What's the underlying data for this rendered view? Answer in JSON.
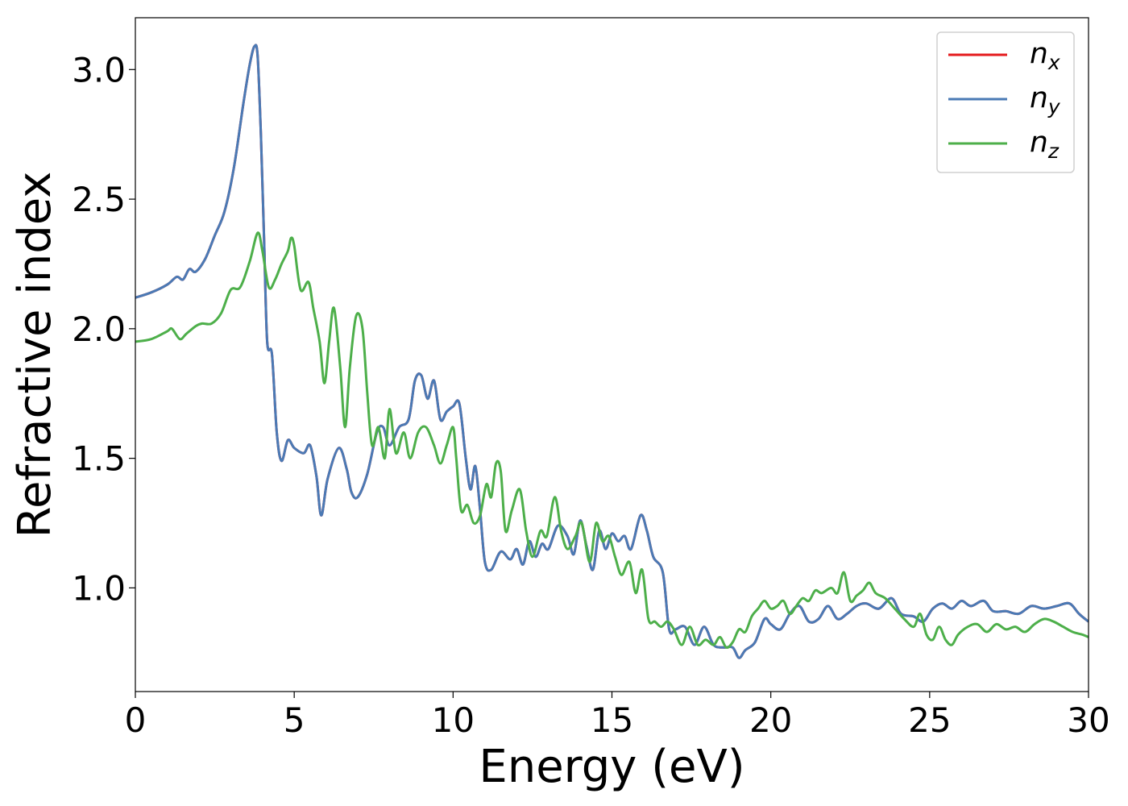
{
  "chart_data": {
    "type": "line",
    "title": "",
    "xlabel": "Energy (eV)",
    "ylabel": "Refractive index",
    "xlim": [
      0,
      30
    ],
    "ylim": [
      0.6,
      3.2
    ],
    "xticks": [
      0,
      5,
      10,
      15,
      20,
      25,
      30
    ],
    "xtick_labels": [
      "0",
      "5",
      "10",
      "15",
      "20",
      "25",
      "30"
    ],
    "yticks": [
      1.0,
      1.5,
      2.0,
      2.5,
      3.0
    ],
    "ytick_labels": [
      "1.0",
      "1.5",
      "2.0",
      "2.5",
      "3.0"
    ],
    "grid": false,
    "legend_position": "top-right",
    "series": [
      {
        "name": "n_x",
        "label_main": "n",
        "label_sub": "x",
        "color": "#e41a1c",
        "x": [
          0,
          0.5,
          1,
          1.3,
          1.5,
          1.7,
          1.9,
          2.2,
          2.5,
          2.8,
          3.1,
          3.4,
          3.6,
          3.75,
          3.85,
          3.95,
          4.05,
          4.15,
          4.3,
          4.45,
          4.6,
          4.8,
          5.0,
          5.3,
          5.5,
          5.7,
          5.85,
          6.05,
          6.4,
          6.65,
          6.8,
          7.0,
          7.3,
          7.6,
          7.8,
          8.0,
          8.3,
          8.6,
          8.8,
          9.0,
          9.2,
          9.4,
          9.6,
          9.8,
          10.0,
          10.2,
          10.4,
          10.55,
          10.7,
          10.85,
          11.0,
          11.2,
          11.5,
          11.8,
          12.0,
          12.2,
          12.4,
          12.6,
          12.8,
          13.0,
          13.3,
          13.6,
          13.8,
          14.0,
          14.2,
          14.4,
          14.6,
          14.8,
          15.0,
          15.2,
          15.4,
          15.6,
          15.9,
          16.1,
          16.3,
          16.6,
          16.8,
          17.0,
          17.3,
          17.6,
          17.9,
          18.2,
          18.5,
          18.8,
          19.0,
          19.2,
          19.5,
          19.8,
          20.0,
          20.3,
          20.6,
          20.9,
          21.2,
          21.5,
          21.8,
          22.1,
          22.4,
          22.7,
          23.0,
          23.4,
          23.8,
          24.1,
          24.5,
          24.8,
          25.1,
          25.4,
          25.7,
          26.0,
          26.3,
          26.7,
          27.0,
          27.4,
          27.8,
          28.2,
          28.6,
          29.0,
          29.4,
          29.7,
          30.0
        ],
        "y": [
          2.12,
          2.14,
          2.17,
          2.2,
          2.19,
          2.23,
          2.22,
          2.27,
          2.36,
          2.45,
          2.62,
          2.87,
          3.02,
          3.09,
          3.05,
          2.75,
          2.35,
          1.95,
          1.9,
          1.6,
          1.49,
          1.57,
          1.54,
          1.52,
          1.55,
          1.43,
          1.28,
          1.42,
          1.54,
          1.46,
          1.37,
          1.35,
          1.44,
          1.6,
          1.62,
          1.55,
          1.62,
          1.65,
          1.8,
          1.82,
          1.73,
          1.8,
          1.65,
          1.68,
          1.7,
          1.71,
          1.5,
          1.38,
          1.47,
          1.3,
          1.1,
          1.07,
          1.14,
          1.11,
          1.15,
          1.09,
          1.18,
          1.12,
          1.17,
          1.15,
          1.24,
          1.2,
          1.13,
          1.26,
          1.16,
          1.07,
          1.22,
          1.15,
          1.21,
          1.18,
          1.2,
          1.15,
          1.28,
          1.22,
          1.12,
          1.06,
          0.84,
          0.84,
          0.85,
          0.78,
          0.85,
          0.78,
          0.77,
          0.77,
          0.73,
          0.76,
          0.79,
          0.88,
          0.86,
          0.84,
          0.9,
          0.93,
          0.87,
          0.88,
          0.93,
          0.88,
          0.9,
          0.93,
          0.94,
          0.92,
          0.96,
          0.9,
          0.89,
          0.87,
          0.92,
          0.94,
          0.92,
          0.95,
          0.93,
          0.95,
          0.91,
          0.91,
          0.9,
          0.93,
          0.92,
          0.93,
          0.94,
          0.9,
          0.87
        ]
      },
      {
        "name": "n_y",
        "label_main": "n",
        "label_sub": "y",
        "color": "#4a7ab5",
        "x": [
          0,
          0.5,
          1,
          1.3,
          1.5,
          1.7,
          1.9,
          2.2,
          2.5,
          2.8,
          3.1,
          3.4,
          3.6,
          3.75,
          3.85,
          3.95,
          4.05,
          4.15,
          4.3,
          4.45,
          4.6,
          4.8,
          5.0,
          5.3,
          5.5,
          5.7,
          5.85,
          6.05,
          6.4,
          6.65,
          6.8,
          7.0,
          7.3,
          7.6,
          7.8,
          8.0,
          8.3,
          8.6,
          8.8,
          9.0,
          9.2,
          9.4,
          9.6,
          9.8,
          10.0,
          10.2,
          10.4,
          10.55,
          10.7,
          10.85,
          11.0,
          11.2,
          11.5,
          11.8,
          12.0,
          12.2,
          12.4,
          12.6,
          12.8,
          13.0,
          13.3,
          13.6,
          13.8,
          14.0,
          14.2,
          14.4,
          14.6,
          14.8,
          15.0,
          15.2,
          15.4,
          15.6,
          15.9,
          16.1,
          16.3,
          16.6,
          16.8,
          17.0,
          17.3,
          17.6,
          17.9,
          18.2,
          18.5,
          18.8,
          19.0,
          19.2,
          19.5,
          19.8,
          20.0,
          20.3,
          20.6,
          20.9,
          21.2,
          21.5,
          21.8,
          22.1,
          22.4,
          22.7,
          23.0,
          23.4,
          23.8,
          24.1,
          24.5,
          24.8,
          25.1,
          25.4,
          25.7,
          26.0,
          26.3,
          26.7,
          27.0,
          27.4,
          27.8,
          28.2,
          28.6,
          29.0,
          29.4,
          29.7,
          30.0
        ],
        "y": [
          2.12,
          2.14,
          2.17,
          2.2,
          2.19,
          2.23,
          2.22,
          2.27,
          2.36,
          2.45,
          2.62,
          2.87,
          3.02,
          3.09,
          3.05,
          2.75,
          2.35,
          1.95,
          1.9,
          1.6,
          1.49,
          1.57,
          1.54,
          1.52,
          1.55,
          1.43,
          1.28,
          1.42,
          1.54,
          1.46,
          1.37,
          1.35,
          1.44,
          1.6,
          1.62,
          1.55,
          1.62,
          1.65,
          1.8,
          1.82,
          1.73,
          1.8,
          1.65,
          1.68,
          1.7,
          1.71,
          1.5,
          1.38,
          1.47,
          1.3,
          1.1,
          1.07,
          1.14,
          1.11,
          1.15,
          1.09,
          1.18,
          1.12,
          1.17,
          1.15,
          1.24,
          1.2,
          1.13,
          1.26,
          1.16,
          1.07,
          1.22,
          1.15,
          1.21,
          1.18,
          1.2,
          1.15,
          1.28,
          1.22,
          1.12,
          1.06,
          0.84,
          0.84,
          0.85,
          0.78,
          0.85,
          0.78,
          0.77,
          0.77,
          0.73,
          0.76,
          0.79,
          0.88,
          0.86,
          0.84,
          0.9,
          0.93,
          0.87,
          0.88,
          0.93,
          0.88,
          0.9,
          0.93,
          0.94,
          0.92,
          0.96,
          0.9,
          0.89,
          0.87,
          0.92,
          0.94,
          0.92,
          0.95,
          0.93,
          0.95,
          0.91,
          0.91,
          0.9,
          0.93,
          0.92,
          0.93,
          0.94,
          0.9,
          0.87
        ]
      },
      {
        "name": "n_z",
        "label_main": "n",
        "label_sub": "z",
        "color": "#4daf4a",
        "x": [
          0,
          0.5,
          1,
          1.15,
          1.4,
          1.6,
          1.9,
          2.1,
          2.4,
          2.7,
          3.0,
          3.3,
          3.6,
          3.85,
          4.0,
          4.2,
          4.4,
          4.6,
          4.8,
          4.9,
          5.0,
          5.2,
          5.45,
          5.6,
          5.8,
          5.95,
          6.1,
          6.25,
          6.45,
          6.6,
          6.75,
          6.95,
          7.15,
          7.3,
          7.45,
          7.65,
          7.85,
          8.0,
          8.2,
          8.45,
          8.65,
          8.9,
          9.15,
          9.4,
          9.6,
          9.8,
          10.0,
          10.1,
          10.25,
          10.45,
          10.65,
          10.85,
          11.05,
          11.2,
          11.35,
          11.5,
          11.65,
          11.85,
          12.1,
          12.3,
          12.5,
          12.75,
          12.95,
          13.2,
          13.4,
          13.6,
          13.85,
          14.05,
          14.3,
          14.5,
          14.7,
          14.9,
          15.1,
          15.3,
          15.55,
          15.75,
          15.95,
          16.15,
          16.35,
          16.55,
          16.75,
          16.95,
          17.2,
          17.45,
          17.7,
          17.95,
          18.2,
          18.4,
          18.6,
          18.8,
          19.0,
          19.2,
          19.4,
          19.6,
          19.8,
          20.0,
          20.2,
          20.4,
          20.6,
          20.8,
          21.0,
          21.2,
          21.4,
          21.6,
          21.9,
          22.1,
          22.3,
          22.5,
          22.7,
          22.9,
          23.1,
          23.3,
          23.6,
          23.9,
          24.2,
          24.5,
          24.7,
          24.9,
          25.1,
          25.3,
          25.5,
          25.7,
          25.9,
          26.2,
          26.5,
          26.8,
          27.1,
          27.4,
          27.7,
          28.0,
          28.3,
          28.6,
          28.9,
          29.2,
          29.5,
          29.8,
          30.0
        ],
        "y": [
          1.95,
          1.96,
          1.99,
          2.0,
          1.96,
          1.98,
          2.01,
          2.02,
          2.02,
          2.06,
          2.15,
          2.16,
          2.26,
          2.37,
          2.3,
          2.16,
          2.19,
          2.25,
          2.3,
          2.35,
          2.32,
          2.15,
          2.18,
          2.08,
          1.95,
          1.79,
          1.95,
          2.08,
          1.85,
          1.62,
          1.85,
          2.05,
          2.0,
          1.75,
          1.55,
          1.62,
          1.5,
          1.69,
          1.52,
          1.6,
          1.5,
          1.6,
          1.62,
          1.55,
          1.48,
          1.55,
          1.62,
          1.5,
          1.3,
          1.32,
          1.25,
          1.28,
          1.4,
          1.35,
          1.48,
          1.45,
          1.22,
          1.3,
          1.38,
          1.22,
          1.12,
          1.22,
          1.2,
          1.35,
          1.22,
          1.15,
          1.2,
          1.25,
          1.1,
          1.25,
          1.18,
          1.2,
          1.12,
          1.05,
          1.1,
          0.98,
          1.07,
          0.88,
          0.87,
          0.85,
          0.87,
          0.84,
          0.78,
          0.85,
          0.78,
          0.8,
          0.78,
          0.81,
          0.77,
          0.79,
          0.84,
          0.83,
          0.89,
          0.92,
          0.95,
          0.92,
          0.93,
          0.95,
          0.9,
          0.93,
          0.96,
          0.95,
          0.99,
          0.98,
          1.0,
          0.98,
          1.06,
          0.95,
          0.97,
          0.99,
          1.02,
          0.98,
          0.96,
          0.92,
          0.88,
          0.85,
          0.9,
          0.82,
          0.8,
          0.85,
          0.8,
          0.78,
          0.82,
          0.85,
          0.86,
          0.83,
          0.86,
          0.84,
          0.85,
          0.83,
          0.86,
          0.88,
          0.87,
          0.85,
          0.83,
          0.82,
          0.81
        ]
      }
    ]
  }
}
